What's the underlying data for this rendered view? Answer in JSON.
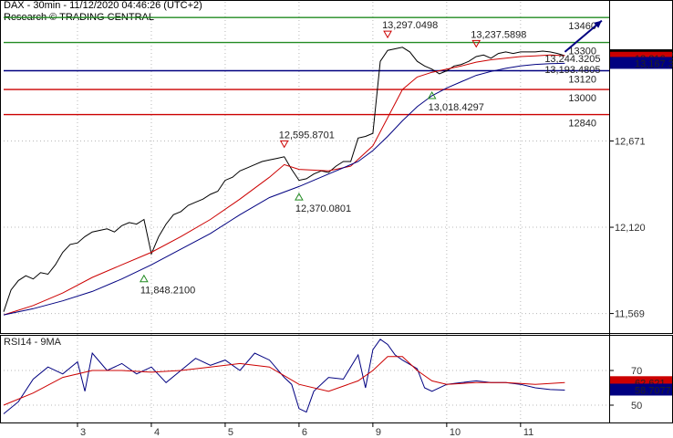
{
  "header": {
    "title": "DAX - 30min - 11/12/2020 04:46:26 (UTC+2)",
    "subtitle": "Research © TRADING CENTRAL"
  },
  "chart_data": [
    {
      "type": "line",
      "ylim": [
        11450,
        13560
      ],
      "y_ticks": [
        {
          "value": 12671,
          "label": "12,671"
        },
        {
          "value": 12120,
          "label": "12,120"
        },
        {
          "value": 11569,
          "label": "11,569"
        }
      ],
      "x_ticks": [
        "3",
        "4",
        "5",
        "6",
        "9",
        "10",
        "11"
      ],
      "x_tick_index": [
        10,
        20,
        30,
        40,
        50,
        60,
        70
      ],
      "grid": true,
      "levels": [
        {
          "value": 13460,
          "label": "13460",
          "color": "#228b22"
        },
        {
          "value": 13300,
          "label": "13300",
          "color": "#228b22"
        },
        {
          "value": 13120,
          "label": "13120",
          "color": "#000080"
        },
        {
          "value": 13000,
          "label": "13000",
          "color": "#cc0000"
        },
        {
          "value": 12840,
          "label": "12840",
          "color": "#cc0000"
        }
      ],
      "price_tags": [
        {
          "label": "13,216.2",
          "value": 13216,
          "bg": "#000000",
          "fg": "#ffffff"
        },
        {
          "label": "13,216",
          "value": 13200,
          "bg": "#cc0000",
          "fg": "#ffffff"
        },
        {
          "label": "13,167.3",
          "value": 13167,
          "bg": "#000080",
          "fg": "#ffffff"
        }
      ],
      "annotations": [
        {
          "text": "13,297.0498",
          "x": 52,
          "y": 13297,
          "marker": "down"
        },
        {
          "text": "13,237.5898",
          "x": 64,
          "y": 13237,
          "marker": "down"
        },
        {
          "text": "13,244.3205",
          "x": 75,
          "y": 13244,
          "marker": "none"
        },
        {
          "text": "13,193.4805",
          "x": 75,
          "y": 13175,
          "marker": "none"
        },
        {
          "text": "13,018.4297",
          "x": 58,
          "y": 13018,
          "marker": "up"
        },
        {
          "text": "12,595.8701",
          "x": 38,
          "y": 12596,
          "marker": "down"
        },
        {
          "text": "12,370.0801",
          "x": 40,
          "y": 12370,
          "marker": "up"
        },
        {
          "text": "11,848.2100",
          "x": 19,
          "y": 11848,
          "marker": "up"
        }
      ],
      "projection": {
        "x": [
          76,
          81
        ],
        "y": [
          13240,
          13440
        ],
        "color": "#000080"
      },
      "series": [
        {
          "color": "#000000",
          "x": [
            0,
            1,
            2,
            3,
            4,
            5,
            6,
            7,
            8,
            9,
            10,
            11,
            12,
            13,
            14,
            15,
            16,
            17,
            18,
            19,
            20,
            21,
            22,
            23,
            24,
            25,
            26,
            27,
            28,
            29,
            30,
            31,
            32,
            33,
            34,
            35,
            36,
            37,
            38,
            39,
            40,
            41,
            42,
            43,
            44,
            45,
            46,
            47,
            48,
            49,
            50,
            51,
            52,
            53,
            54,
            55,
            56,
            57,
            58,
            59,
            60,
            61,
            62,
            63,
            64,
            65,
            66,
            67,
            68,
            69,
            70,
            71,
            72,
            73,
            74,
            75,
            76
          ],
          "values": [
            11580,
            11720,
            11780,
            11810,
            11790,
            11830,
            11820,
            11880,
            11960,
            12010,
            12020,
            12060,
            12090,
            12100,
            12110,
            12090,
            12130,
            12150,
            12140,
            12170,
            11950,
            12060,
            12140,
            12200,
            12220,
            12260,
            12280,
            12300,
            12330,
            12350,
            12420,
            12440,
            12480,
            12500,
            12520,
            12540,
            12550,
            12560,
            12570,
            12490,
            12420,
            12430,
            12460,
            12480,
            12470,
            12510,
            12540,
            12540,
            12690,
            12700,
            12720,
            13180,
            13250,
            13260,
            13270,
            13240,
            13180,
            13150,
            13130,
            13100,
            13120,
            13150,
            13160,
            13180,
            13210,
            13220,
            13200,
            13230,
            13240,
            13230,
            13240,
            13240,
            13240,
            13245,
            13240,
            13230,
            13216
          ]
        },
        {
          "color": "#cc0000",
          "x": [
            0,
            4,
            8,
            12,
            16,
            20,
            24,
            28,
            32,
            36,
            38,
            40,
            44,
            47,
            50,
            52,
            54,
            56,
            58,
            60,
            62,
            64,
            66,
            68,
            70,
            72,
            74,
            76
          ],
          "values": [
            11560,
            11620,
            11700,
            11800,
            11880,
            11960,
            12060,
            12170,
            12300,
            12440,
            12520,
            12490,
            12480,
            12510,
            12640,
            12820,
            13000,
            13080,
            13110,
            13130,
            13150,
            13175,
            13190,
            13200,
            13210,
            13215,
            13220,
            13216
          ]
        },
        {
          "color": "#000080",
          "x": [
            0,
            4,
            8,
            12,
            16,
            20,
            24,
            28,
            32,
            36,
            40,
            44,
            48,
            50,
            52,
            54,
            56,
            58,
            60,
            62,
            64,
            66,
            68,
            70,
            72,
            74,
            76
          ],
          "values": [
            11560,
            11600,
            11650,
            11710,
            11790,
            11880,
            11980,
            12080,
            12200,
            12310,
            12380,
            12460,
            12540,
            12610,
            12700,
            12800,
            12890,
            12960,
            13010,
            13050,
            13090,
            13115,
            13135,
            13150,
            13160,
            13165,
            13167
          ]
        }
      ]
    },
    {
      "type": "line",
      "title": "RSI14 - 9MA",
      "ylim": [
        40,
        90
      ],
      "y_ticks": [
        {
          "value": 70,
          "label": "70"
        },
        {
          "value": 50,
          "label": "50"
        }
      ],
      "price_tags": [
        {
          "label": "62.621",
          "value": 63,
          "bg": "#cc0000",
          "fg": "#ffffff"
        },
        {
          "label": "58.7077",
          "value": 58.7,
          "bg": "#000080",
          "fg": "#ffffff"
        }
      ],
      "series": [
        {
          "color": "#000080",
          "x": [
            0,
            2,
            4,
            6,
            8,
            10,
            11,
            12,
            14,
            16,
            18,
            20,
            22,
            24,
            26,
            28,
            30,
            32,
            34,
            36,
            38,
            39,
            40,
            41,
            42,
            44,
            46,
            48,
            49,
            50,
            51,
            52,
            53,
            54,
            56,
            57,
            58,
            60,
            62,
            64,
            66,
            68,
            70,
            72,
            74,
            76
          ],
          "values": [
            45,
            52,
            65,
            72,
            68,
            75,
            58,
            80,
            70,
            74,
            68,
            72,
            63,
            70,
            77,
            73,
            76,
            70,
            80,
            76,
            66,
            62,
            48,
            46,
            58,
            66,
            65,
            79,
            60,
            82,
            88,
            85,
            79,
            76,
            71,
            60,
            58,
            62,
            63,
            64,
            63,
            63,
            62,
            60,
            59,
            58.7
          ]
        },
        {
          "color": "#cc0000",
          "x": [
            0,
            4,
            8,
            12,
            16,
            20,
            24,
            28,
            32,
            36,
            40,
            44,
            48,
            50,
            52,
            54,
            56,
            58,
            60,
            64,
            68,
            72,
            76
          ],
          "values": [
            50,
            57,
            66,
            70,
            70,
            69,
            70,
            72,
            74,
            72,
            62,
            58,
            64,
            70,
            78,
            78,
            70,
            64,
            62,
            63,
            63,
            62,
            63
          ]
        }
      ]
    }
  ]
}
